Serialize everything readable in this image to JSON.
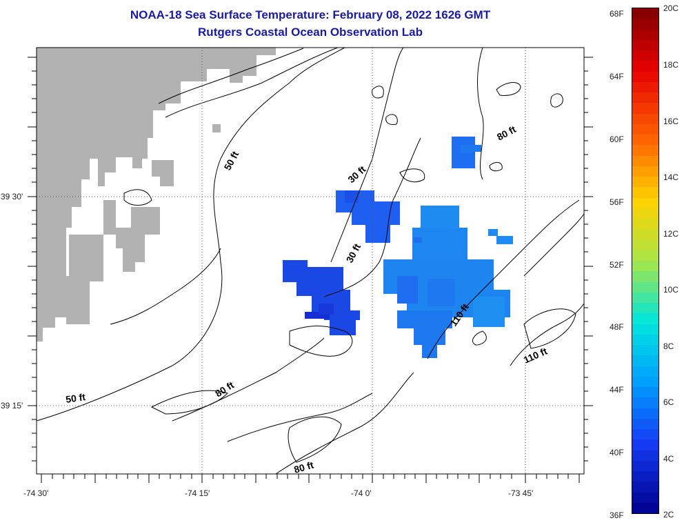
{
  "title": {
    "line1": "NOAA-18 Sea Surface Temperature:  February 08, 2022 1626 GMT",
    "line2": "Rutgers Coastal Ocean Observation Lab"
  },
  "axes": {
    "x_ticks": [
      "-74 30'",
      "-74 15'",
      "-74 0'",
      "-73 45'"
    ],
    "y_ticks": [
      "39 30'",
      "39 15'"
    ]
  },
  "contour_labels": [
    "50 ft",
    "30 ft",
    "80 ft",
    "30 ft",
    "110 ft",
    "110 ft",
    "50 ft",
    "80 ft",
    "80 ft"
  ],
  "colorbar": {
    "fahrenheit": [
      "68F",
      "64F",
      "60F",
      "56F",
      "52F",
      "48F",
      "44F",
      "40F",
      "36F"
    ],
    "celsius": [
      "20C",
      "18C",
      "16C",
      "14C",
      "12C",
      "10C",
      "8C",
      "6C",
      "4C",
      "2C"
    ]
  },
  "colors": {
    "land": "#b2b2b2",
    "title": "#1a1aa6",
    "sst_dark": "#1428d8",
    "sst_mid": "#1e64f0",
    "sst_light": "#1e8cf0"
  }
}
